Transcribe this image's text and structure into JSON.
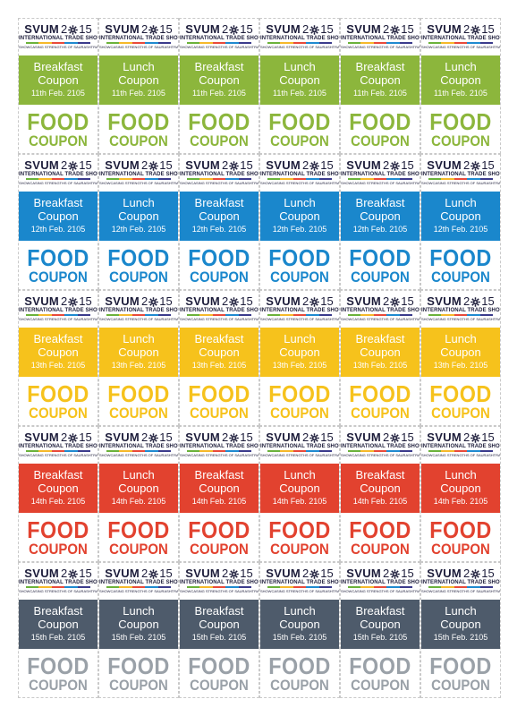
{
  "logo": {
    "word": "SVUM",
    "year_a": "2",
    "year_b": "15",
    "subtitle": "INTERNATIONAL TRADE SHOW",
    "tagline": "SHOWCASING STRENGTHS OF SAURASHTRA-KUTCH",
    "colors": [
      "#6bb23b",
      "#f5b82a",
      "#e84a3b",
      "#1f8ad0",
      "#3b3b8c"
    ]
  },
  "coupon_text": {
    "big_line_1": "FOOD",
    "big_line_2": "COUPON"
  },
  "meal_columns": [
    "Breakfast Coupon",
    "Lunch Coupon",
    "Breakfast Coupon",
    "Lunch Coupon",
    "Breakfast Coupon",
    "Lunch Coupon"
  ],
  "rows": [
    {
      "date": "11th Feb. 2105",
      "color": "#8cb63c"
    },
    {
      "date": "12th Feb. 2105",
      "color": "#1a87cc"
    },
    {
      "date": "13th Feb. 2105",
      "color": "#f6c21c"
    },
    {
      "date": "14th Feb. 2105",
      "color": "#e2422f"
    },
    {
      "date": "15th Feb. 2105",
      "color": "#4e5b6b"
    }
  ],
  "big_text_colors": [
    "#8cb63c",
    "#1a87cc",
    "#f6c21c",
    "#e2422f",
    "#9aa1a8"
  ]
}
